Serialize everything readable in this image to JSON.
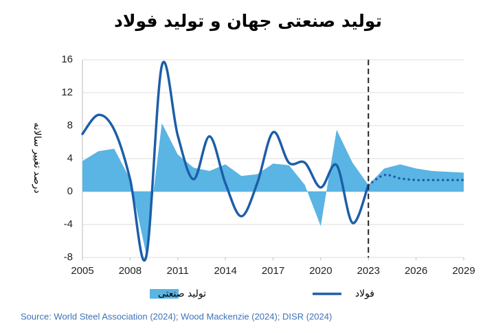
{
  "chart_data": {
    "type": "line",
    "title": "تولید صنعتی جهان و تولید فولاد",
    "y_label": "درصد تغییر سالانه",
    "source": "Source: World Steel Association (2024); Wood Mackenzie (2024); DISR (2024)",
    "x": [
      2005,
      2006,
      2007,
      2008,
      2009,
      2010,
      2011,
      2012,
      2013,
      2014,
      2015,
      2016,
      2017,
      2018,
      2019,
      2020,
      2021,
      2022,
      2023,
      2024,
      2025,
      2026,
      2027,
      2028,
      2029
    ],
    "xlim": [
      2005,
      2029
    ],
    "xticks": [
      2005,
      2008,
      2011,
      2014,
      2017,
      2020,
      2023,
      2026,
      2029
    ],
    "ylim": [
      -8,
      16
    ],
    "yticks": [
      -8,
      -4,
      0,
      4,
      8,
      12,
      16
    ],
    "grid": true,
    "forecast_start": 2023,
    "series": [
      {
        "name": "تولید صنعتی",
        "style": "area",
        "color": "#5ab4e4",
        "values": [
          3.7,
          4.9,
          5.2,
          1.5,
          -7.5,
          8.3,
          4.5,
          2.9,
          2.5,
          3.3,
          1.9,
          2.1,
          3.4,
          3.2,
          0.8,
          -4.2,
          7.5,
          3.5,
          0.8,
          2.8,
          3.3,
          2.8,
          2.5,
          2.4,
          2.3
        ]
      },
      {
        "name": "فولاد",
        "style": "line",
        "color": "#1c5ea8",
        "values": [
          7.0,
          9.3,
          7.5,
          1.5,
          -8.0,
          15.3,
          6.8,
          1.5,
          6.7,
          1.0,
          -3.0,
          1.0,
          7.2,
          3.5,
          3.5,
          0.5,
          3.2,
          -3.8,
          0.8,
          2.0,
          1.6,
          1.4,
          1.4,
          1.4,
          1.4
        ]
      }
    ]
  }
}
